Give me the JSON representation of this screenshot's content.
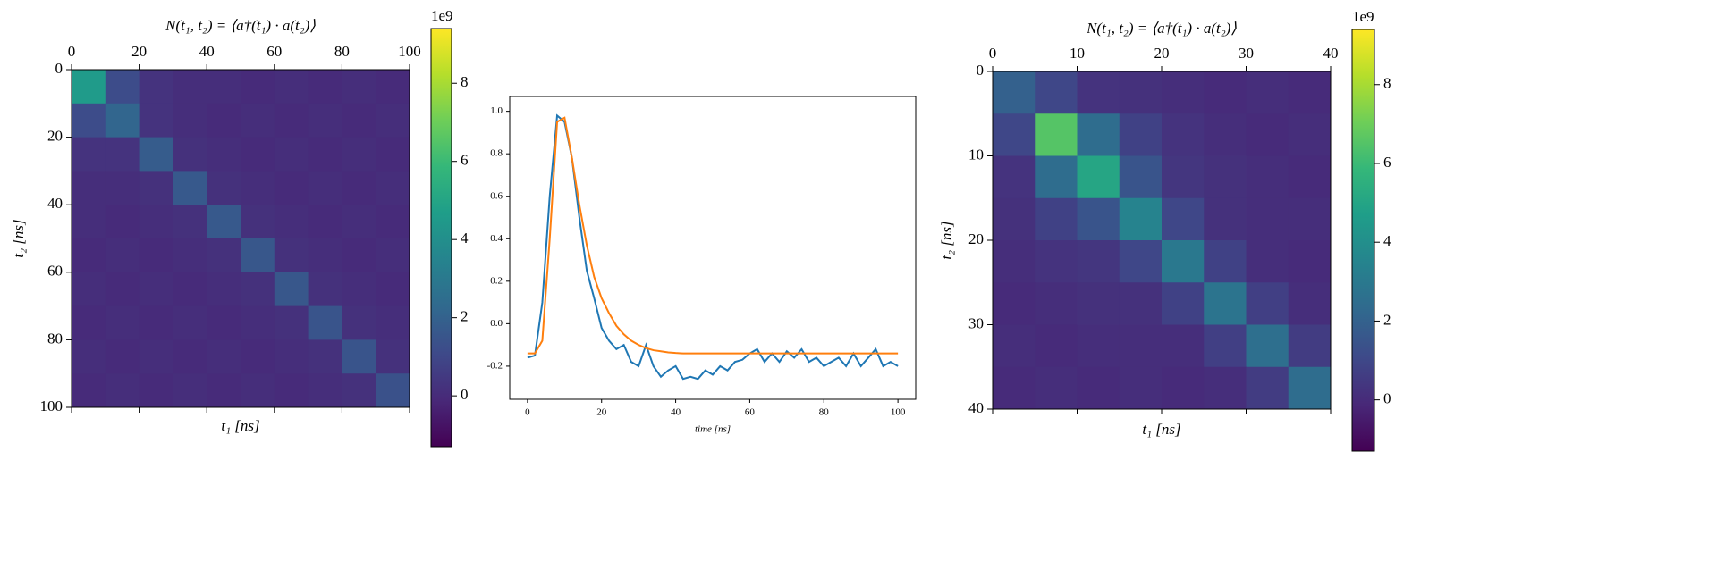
{
  "chart_data": [
    {
      "type": "heatmap",
      "title": "N(t₁, t₂) = ⟨a†(t₁) · a(t₂)⟩",
      "xlabel": "t₁ [ns]",
      "ylabel": "t₂ [ns]",
      "xlim": [
        0,
        100
      ],
      "ylim": [
        100,
        0
      ],
      "xticks": [
        0,
        20,
        40,
        60,
        80,
        100
      ],
      "yticks": [
        0,
        20,
        40,
        60,
        80,
        100
      ],
      "colormap": "viridis",
      "z": [
        [
          4.5,
          1.2,
          0.3,
          0.1,
          0.1,
          0.0,
          0.1,
          0.0,
          0.1,
          0.0
        ],
        [
          1.2,
          2.2,
          0.3,
          0.1,
          0.0,
          0.1,
          0.0,
          0.1,
          0.0,
          0.1
        ],
        [
          0.3,
          0.3,
          1.8,
          0.2,
          0.1,
          0.0,
          0.1,
          0.0,
          0.1,
          0.0
        ],
        [
          0.1,
          0.1,
          0.2,
          1.7,
          0.2,
          0.1,
          0.0,
          0.1,
          0.0,
          0.1
        ],
        [
          0.1,
          0.0,
          0.1,
          0.2,
          1.7,
          0.2,
          0.1,
          0.0,
          0.1,
          0.0
        ],
        [
          0.0,
          0.1,
          0.0,
          0.1,
          0.2,
          1.6,
          0.2,
          0.1,
          0.0,
          0.1
        ],
        [
          0.1,
          0.0,
          0.1,
          0.0,
          0.1,
          0.2,
          1.6,
          0.2,
          0.1,
          0.0
        ],
        [
          0.0,
          0.1,
          0.0,
          0.1,
          0.0,
          0.1,
          0.2,
          1.5,
          0.2,
          0.1
        ],
        [
          0.1,
          0.0,
          0.1,
          0.0,
          0.1,
          0.0,
          0.1,
          0.2,
          1.5,
          0.2
        ],
        [
          0.0,
          0.1,
          0.0,
          0.1,
          0.0,
          0.1,
          0.0,
          0.1,
          0.2,
          1.4
        ]
      ],
      "colorbar": {
        "lim": [
          -1.3,
          9.4
        ],
        "ticks": [
          0,
          2,
          4,
          6,
          8
        ],
        "offset_label": "1e9"
      }
    },
    {
      "type": "line",
      "xlabel": "time [ns]",
      "x": [
        0,
        2,
        4,
        6,
        8,
        10,
        12,
        14,
        16,
        18,
        20,
        22,
        24,
        26,
        28,
        30,
        32,
        34,
        36,
        38,
        40,
        42,
        44,
        46,
        48,
        50,
        52,
        54,
        56,
        58,
        60,
        62,
        64,
        66,
        68,
        70,
        72,
        74,
        76,
        78,
        80,
        82,
        84,
        86,
        88,
        90,
        92,
        94,
        96,
        98,
        100
      ],
      "xlim": [
        -4.8,
        104.8
      ],
      "ylim": [
        -0.356,
        1.07
      ],
      "xticks": [
        0,
        20,
        40,
        60,
        80,
        100
      ],
      "yticks": [
        -0.2,
        {
          "value": 0,
          "label": "0.0"
        },
        0.2,
        0.4,
        0.6,
        0.8,
        {
          "value": 1,
          "label": "1.0"
        }
      ],
      "series": [
        {
          "color": "#1f77b4",
          "values": [
            -0.16,
            -0.15,
            0.1,
            0.6,
            0.98,
            0.95,
            0.78,
            0.5,
            0.25,
            0.12,
            -0.02,
            -0.08,
            -0.12,
            -0.1,
            -0.18,
            -0.2,
            -0.1,
            -0.2,
            -0.25,
            -0.22,
            -0.2,
            -0.26,
            -0.25,
            -0.26,
            -0.22,
            -0.24,
            -0.2,
            -0.22,
            -0.18,
            -0.17,
            -0.14,
            -0.12,
            -0.18,
            -0.14,
            -0.18,
            -0.13,
            -0.16,
            -0.12,
            -0.18,
            -0.16,
            -0.2,
            -0.18,
            -0.16,
            -0.2,
            -0.14,
            -0.2,
            -0.16,
            -0.12,
            -0.2,
            -0.18,
            -0.2
          ]
        },
        {
          "color": "#ff7f0e",
          "values": [
            -0.14,
            -0.14,
            -0.08,
            0.4,
            0.95,
            0.97,
            0.78,
            0.56,
            0.37,
            0.22,
            0.12,
            0.05,
            -0.01,
            -0.05,
            -0.08,
            -0.1,
            -0.115,
            -0.125,
            -0.13,
            -0.135,
            -0.138,
            -0.14,
            -0.14,
            -0.14,
            -0.14,
            -0.14,
            -0.14,
            -0.14,
            -0.14,
            -0.14,
            -0.14,
            -0.14,
            -0.14,
            -0.14,
            -0.14,
            -0.14,
            -0.14,
            -0.14,
            -0.14,
            -0.14,
            -0.14,
            -0.14,
            -0.14,
            -0.14,
            -0.14,
            -0.14,
            -0.14,
            -0.14,
            -0.14,
            -0.14,
            -0.14
          ]
        }
      ]
    },
    {
      "type": "heatmap",
      "title": "N(t₁, t₂) = ⟨a†(t₁) · a(t₂)⟩",
      "xlabel": "t₁ [ns]",
      "ylabel": "t₂ [ns]",
      "xlim": [
        0,
        40
      ],
      "ylim": [
        40,
        0
      ],
      "xticks": [
        0,
        10,
        20,
        30,
        40
      ],
      "yticks": [
        0,
        10,
        20,
        30,
        40
      ],
      "colormap": "viridis",
      "z": [
        [
          2.0,
          1.0,
          0.3,
          0.2,
          0.1,
          0.0,
          0.1,
          0.0
        ],
        [
          1.0,
          6.5,
          2.5,
          0.8,
          0.3,
          0.1,
          0.0,
          0.1
        ],
        [
          0.3,
          2.5,
          5.0,
          1.5,
          0.4,
          0.2,
          0.1,
          0.0
        ],
        [
          0.2,
          0.8,
          1.5,
          3.5,
          1.0,
          0.2,
          0.1,
          0.1
        ],
        [
          0.1,
          0.3,
          0.4,
          1.0,
          3.0,
          0.8,
          0.1,
          0.0
        ],
        [
          0.0,
          0.1,
          0.2,
          0.2,
          0.8,
          2.8,
          0.7,
          0.1
        ],
        [
          0.1,
          0.0,
          0.1,
          0.1,
          0.1,
          0.7,
          2.6,
          0.6
        ],
        [
          0.0,
          0.1,
          0.0,
          0.1,
          0.0,
          0.1,
          0.6,
          2.5
        ]
      ],
      "colorbar": {
        "lim": [
          -1.3,
          9.4
        ],
        "ticks": [
          0,
          2,
          4,
          6,
          8
        ],
        "offset_label": "1e9"
      }
    }
  ]
}
